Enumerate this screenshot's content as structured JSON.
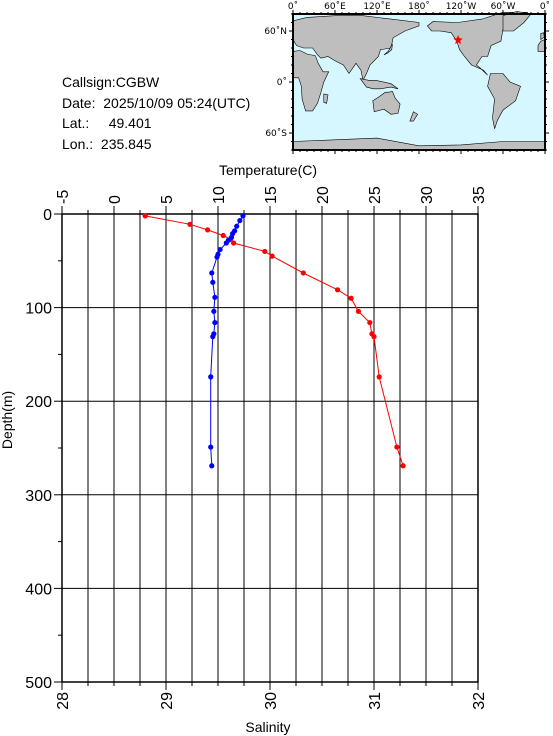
{
  "station": {
    "callsign_label": "Callsign:",
    "callsign": "CGBW",
    "date_label": "Date:",
    "date": "2025/10/09 05:24(UTC)",
    "lat_label": "Lat.:",
    "lat": "49.401",
    "lon_label": "Lon.:",
    "lon": "235.845"
  },
  "map": {
    "top_ticks": [
      "0˚",
      "60˚E",
      "120˚E",
      "180˚",
      "120˚W",
      "60˚W",
      "0˚"
    ],
    "left_ticks": [
      "60˚N",
      "0˚",
      "60˚S"
    ],
    "ocean_color": "#d6f7ff",
    "land_color": "#bebebe",
    "marker": {
      "lon": 235.845,
      "lat": 49.401,
      "color": "#ff0000",
      "symbol": "star"
    }
  },
  "chart_data": {
    "type": "line",
    "grid": true,
    "y_axis": {
      "label": "Depth(m)",
      "range": [
        0,
        500
      ],
      "inverted": true,
      "ticks": [
        0,
        100,
        200,
        300,
        400,
        500
      ]
    },
    "top_axis": {
      "label": "Temperature(C)",
      "range": [
        -5,
        35
      ],
      "ticks": [
        -5,
        0,
        5,
        10,
        15,
        20,
        25,
        30,
        35
      ]
    },
    "bottom_axis": {
      "label": "Salinity",
      "range": [
        28,
        32
      ],
      "ticks": [
        28,
        29,
        30,
        31,
        32
      ]
    },
    "series": [
      {
        "quantity": "temperature",
        "axis": "top",
        "color": "#ff0000",
        "points": [
          [
            3.0,
            2
          ],
          [
            7.3,
            11
          ],
          [
            9.0,
            17
          ],
          [
            10.5,
            23
          ],
          [
            11.2,
            27
          ],
          [
            11.5,
            31
          ],
          [
            14.5,
            40
          ],
          [
            15.2,
            45
          ],
          [
            18.2,
            63
          ],
          [
            21.5,
            81
          ],
          [
            22.8,
            90
          ],
          [
            23.5,
            104
          ],
          [
            24.6,
            116
          ],
          [
            24.8,
            128
          ],
          [
            25.0,
            131
          ],
          [
            25.5,
            174
          ],
          [
            27.2,
            249
          ],
          [
            27.8,
            269
          ]
        ]
      },
      {
        "quantity": "salinity",
        "axis": "bottom",
        "color": "#0000ff",
        "points": [
          [
            29.74,
            2
          ],
          [
            29.71,
            7
          ],
          [
            29.68,
            13
          ],
          [
            29.66,
            18
          ],
          [
            29.64,
            21
          ],
          [
            29.63,
            25
          ],
          [
            29.6,
            28
          ],
          [
            29.58,
            31
          ],
          [
            29.52,
            38
          ],
          [
            29.5,
            43
          ],
          [
            29.49,
            46
          ],
          [
            29.44,
            63
          ],
          [
            29.45,
            73
          ],
          [
            29.47,
            89
          ],
          [
            29.46,
            104
          ],
          [
            29.47,
            116
          ],
          [
            29.46,
            128
          ],
          [
            29.45,
            131
          ],
          [
            29.43,
            174
          ],
          [
            29.43,
            249
          ],
          [
            29.44,
            269
          ]
        ]
      }
    ]
  }
}
